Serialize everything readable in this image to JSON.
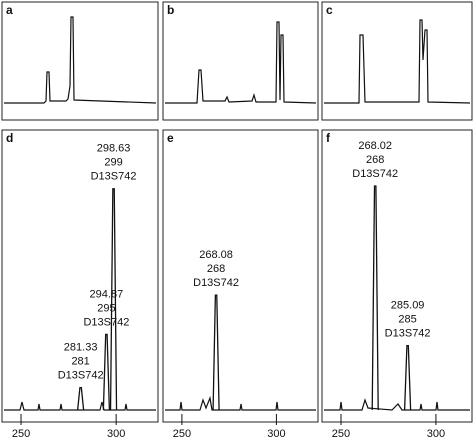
{
  "chart_data": [
    {
      "type": "electropherogram",
      "label": "a"
    },
    {
      "type": "electropherogram",
      "label": "b"
    },
    {
      "type": "electropherogram",
      "label": "c"
    },
    {
      "type": "electropherogram",
      "label": "d",
      "xlim": [
        240,
        322
      ],
      "xticks": [
        250,
        300
      ],
      "peaks": [
        {
          "x": 298.63,
          "height": 79,
          "labels": [
            "298.63",
            "299",
            "D13S742"
          ]
        },
        {
          "x": 294.87,
          "height": 27,
          "labels": [
            "294.87",
            "295",
            "D13S742"
          ]
        },
        {
          "x": 281.33,
          "height": 8,
          "labels": [
            "281.33",
            "281",
            "D13S742"
          ]
        }
      ]
    },
    {
      "type": "electropherogram",
      "label": "e",
      "xlim": [
        240,
        322
      ],
      "xticks": [
        250,
        300
      ],
      "peaks": [
        {
          "x": 268.08,
          "height": 41,
          "labels": [
            "268.08",
            "268",
            "D13S742"
          ]
        }
      ]
    },
    {
      "type": "electropherogram",
      "label": "f",
      "xlim": [
        240,
        319
      ],
      "xticks": [
        250,
        300
      ],
      "peaks": [
        {
          "x": 268.02,
          "height": 80,
          "labels": [
            "268.02",
            "268",
            "D13S742"
          ]
        },
        {
          "x": 285.09,
          "height": 23,
          "labels": [
            "285.09",
            "285",
            "D13S742"
          ]
        }
      ]
    }
  ]
}
